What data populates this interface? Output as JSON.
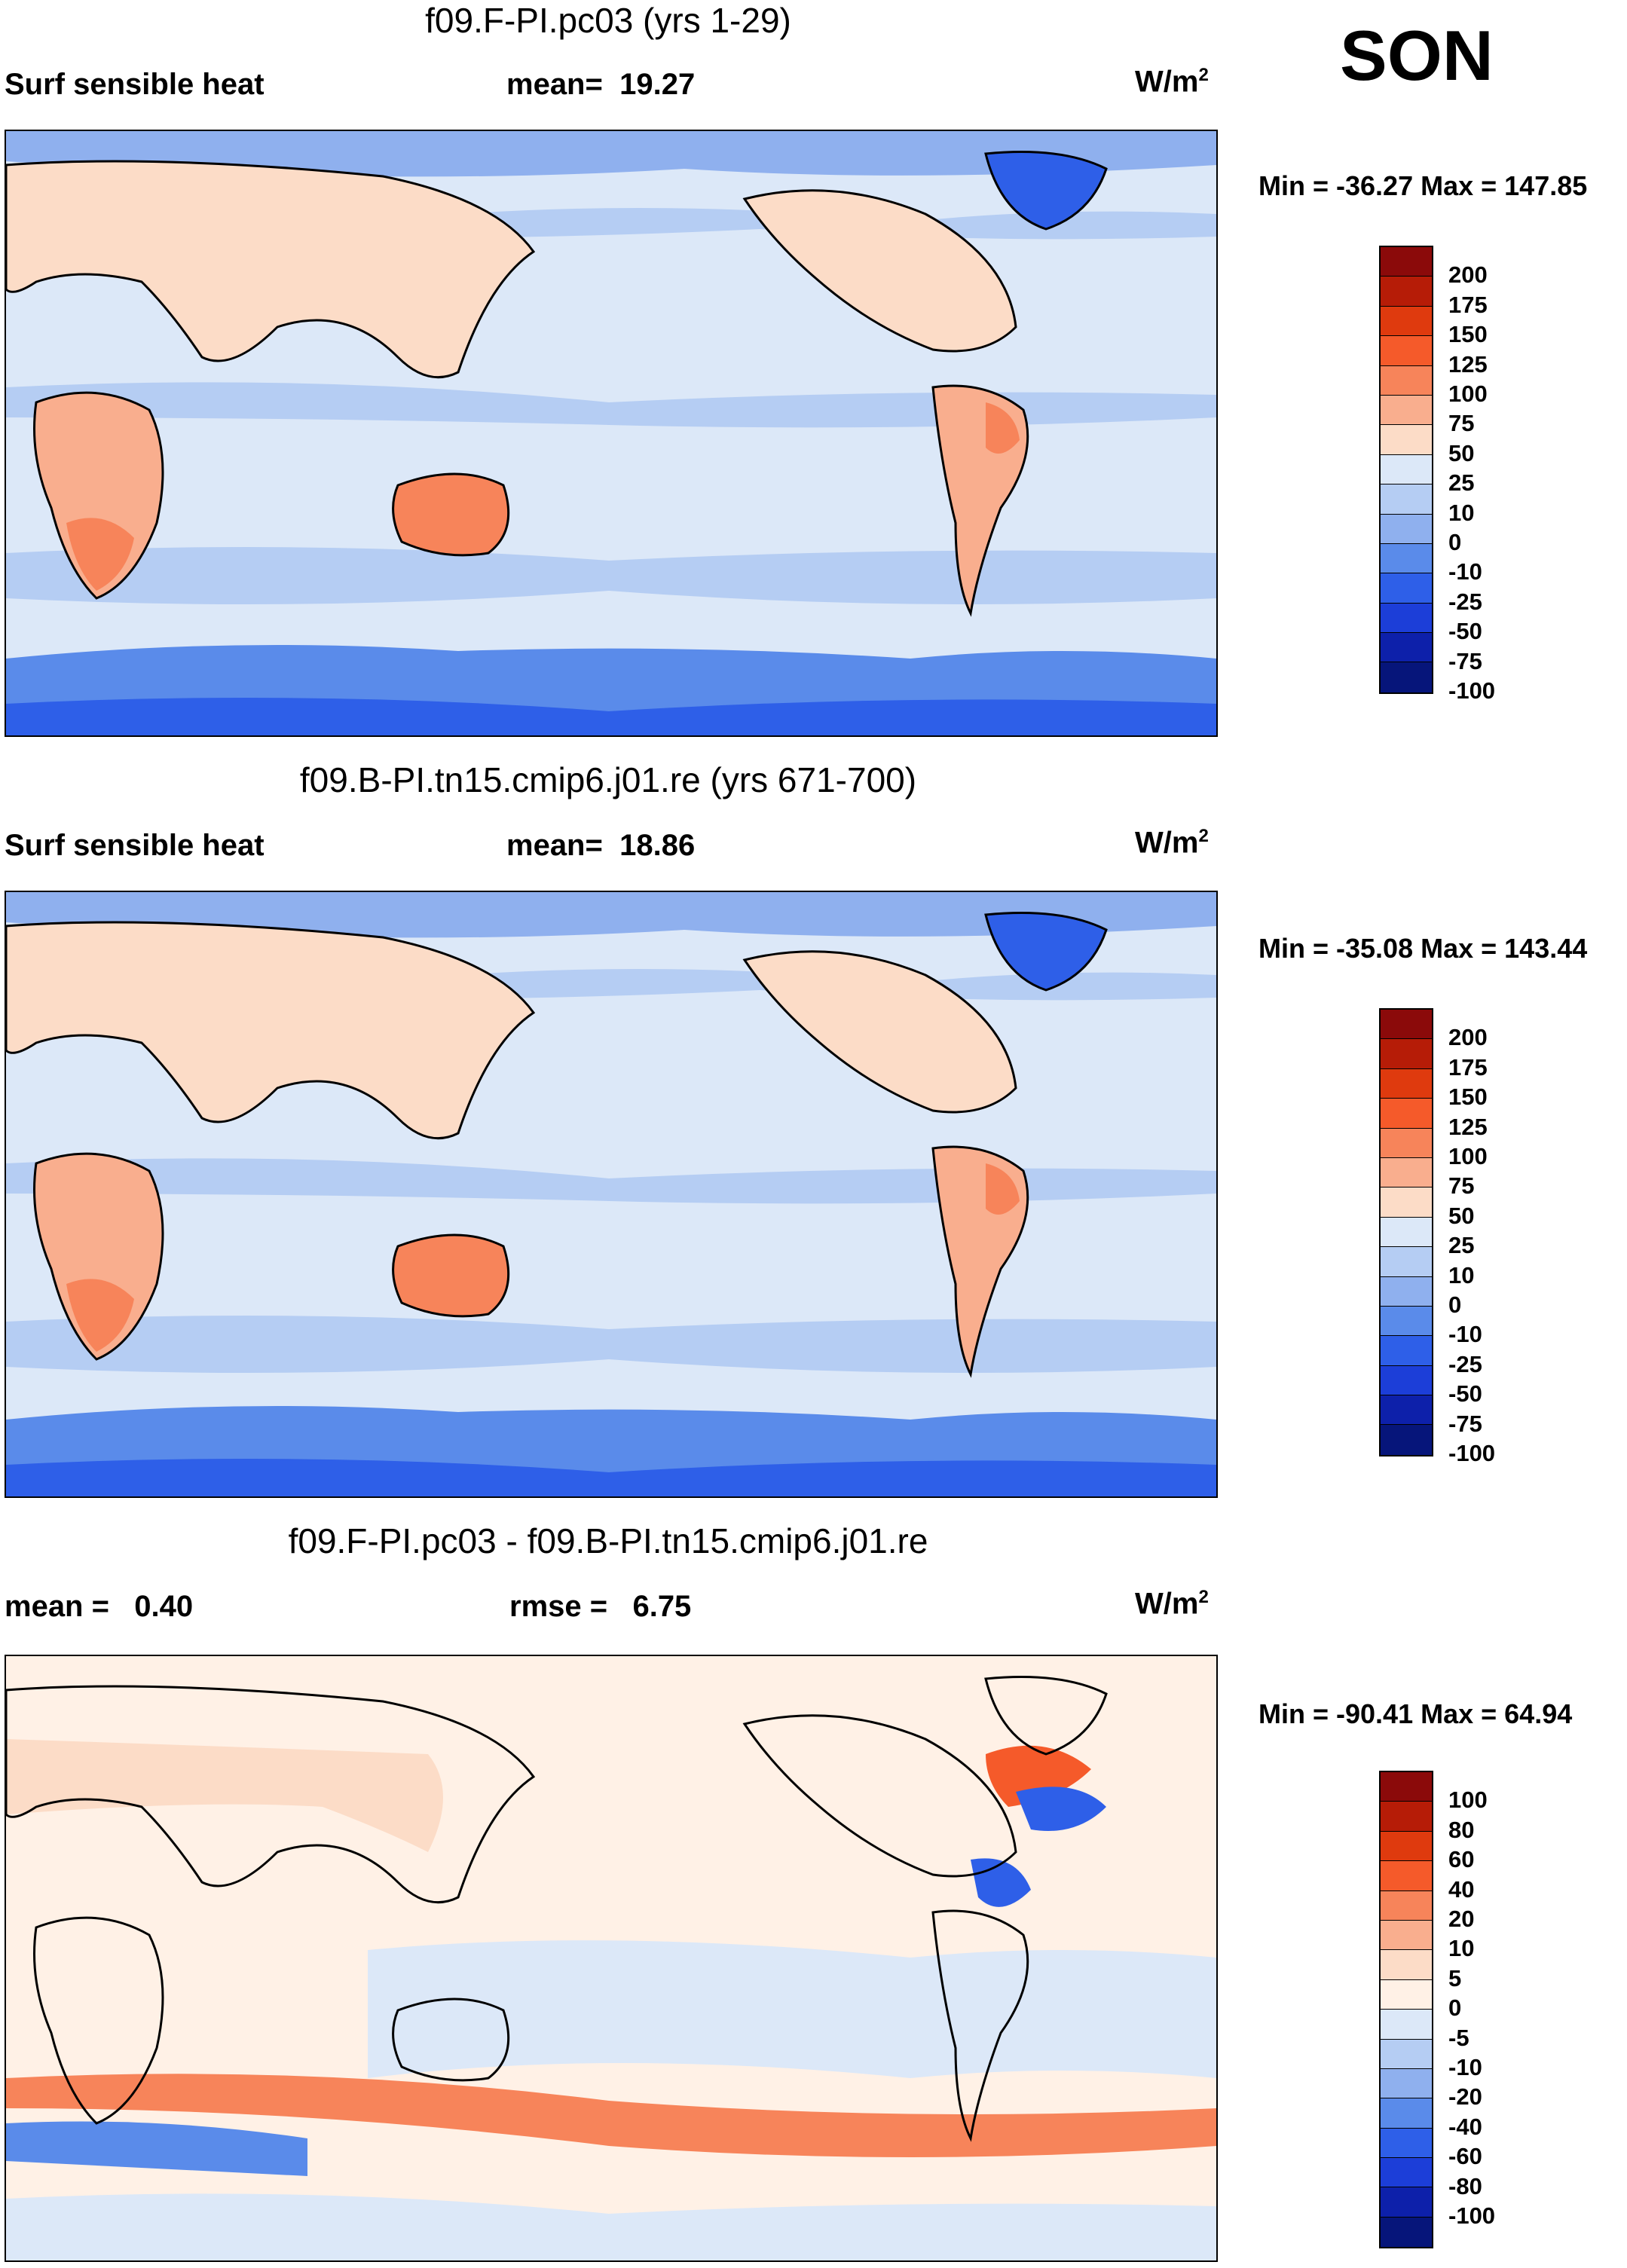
{
  "season": "SON",
  "panels": [
    {
      "title": "f09.F-PI.pc03 (yrs 1-29)",
      "left_text": "Surf sensible heat",
      "center_label": "mean=",
      "center_value": "19.27",
      "units_base": "W/m",
      "units_exp": "2",
      "minmax": "Min = -36.27 Max = 147.85",
      "colorbar": {
        "colors": [
          "#8B0A0A",
          "#B61C07",
          "#DF3A0E",
          "#F55A2A",
          "#F7845A",
          "#F9AE8E",
          "#FCDCC7",
          "#DCE8F8",
          "#B5CDF3",
          "#8FB0EE",
          "#5A8BEA",
          "#2E5FE8",
          "#1C3ED8",
          "#0D20AA",
          "#06157A"
        ],
        "labels": [
          "200",
          "175",
          "150",
          "125",
          "100",
          "75",
          "50",
          "25",
          "10",
          "0",
          "-10",
          "-25",
          "-50",
          "-75",
          "-100"
        ]
      }
    },
    {
      "title": "f09.B-PI.tn15.cmip6.j01.re (yrs 671-700)",
      "left_text": "Surf sensible heat",
      "center_label": "mean=",
      "center_value": "18.86",
      "units_base": "W/m",
      "units_exp": "2",
      "minmax": "Min = -35.08 Max = 143.44",
      "colorbar": {
        "colors": [
          "#8B0A0A",
          "#B61C07",
          "#DF3A0E",
          "#F55A2A",
          "#F7845A",
          "#F9AE8E",
          "#FCDCC7",
          "#DCE8F8",
          "#B5CDF3",
          "#8FB0EE",
          "#5A8BEA",
          "#2E5FE8",
          "#1C3ED8",
          "#0D20AA",
          "#06157A"
        ],
        "labels": [
          "200",
          "175",
          "150",
          "125",
          "100",
          "75",
          "50",
          "25",
          "10",
          "0",
          "-10",
          "-25",
          "-50",
          "-75",
          "-100"
        ]
      }
    },
    {
      "title": "f09.F-PI.pc03 - f09.B-PI.tn15.cmip6.j01.re",
      "left_text": "mean =   0.40",
      "center_label": "rmse =",
      "center_value": "6.75",
      "units_base": "W/m",
      "units_exp": "2",
      "minmax": "Min = -90.41 Max =  64.94",
      "colorbar": {
        "colors": [
          "#8B0A0A",
          "#B61C07",
          "#DF3A0E",
          "#F55A2A",
          "#F7845A",
          "#F9AE8E",
          "#FCDCC7",
          "#FFF1E6",
          "#DCE8F8",
          "#B5CDF3",
          "#8FB0EE",
          "#5A8BEA",
          "#2E5FE8",
          "#1C3ED8",
          "#0D20AA",
          "#06157A"
        ],
        "labels": [
          "100",
          "80",
          "60",
          "40",
          "20",
          "10",
          "5",
          "0",
          "-5",
          "-10",
          "-20",
          "-40",
          "-60",
          "-80",
          "-100"
        ]
      }
    }
  ]
}
